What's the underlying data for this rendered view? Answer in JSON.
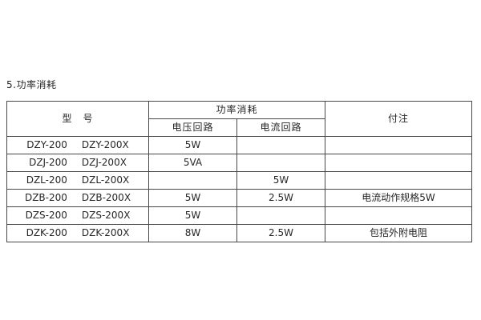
{
  "page": {
    "title": "5.功率消耗"
  },
  "table": {
    "headers": {
      "model": "型　号",
      "power_group": "功率消耗",
      "voltage_circuit": "电压回路",
      "current_circuit": "电流回路",
      "note": "付注"
    },
    "rows": [
      {
        "model_a": "DZY-200",
        "model_b": "DZY-200X",
        "voltage": "5W",
        "current": "",
        "note": ""
      },
      {
        "model_a": "DZJ-200",
        "model_b": "DZJ-200X",
        "voltage": "5VA",
        "current": "",
        "note": ""
      },
      {
        "model_a": "DZL-200",
        "model_b": "DZL-200X",
        "voltage": "",
        "current": "5W",
        "note": ""
      },
      {
        "model_a": "DZB-200",
        "model_b": "DZB-200X",
        "voltage": "5W",
        "current": "2.5W",
        "note": "电流动作规格5W"
      },
      {
        "model_a": "DZS-200",
        "model_b": "DZS-200X",
        "voltage": "5W",
        "current": "",
        "note": ""
      },
      {
        "model_a": "DZK-200",
        "model_b": "DZK-200X",
        "voltage": "8W",
        "current": "2.5W",
        "note": "包括外附电阻"
      }
    ]
  },
  "colors": {
    "background": "#ffffff",
    "border": "#474747",
    "text": "#262626"
  }
}
